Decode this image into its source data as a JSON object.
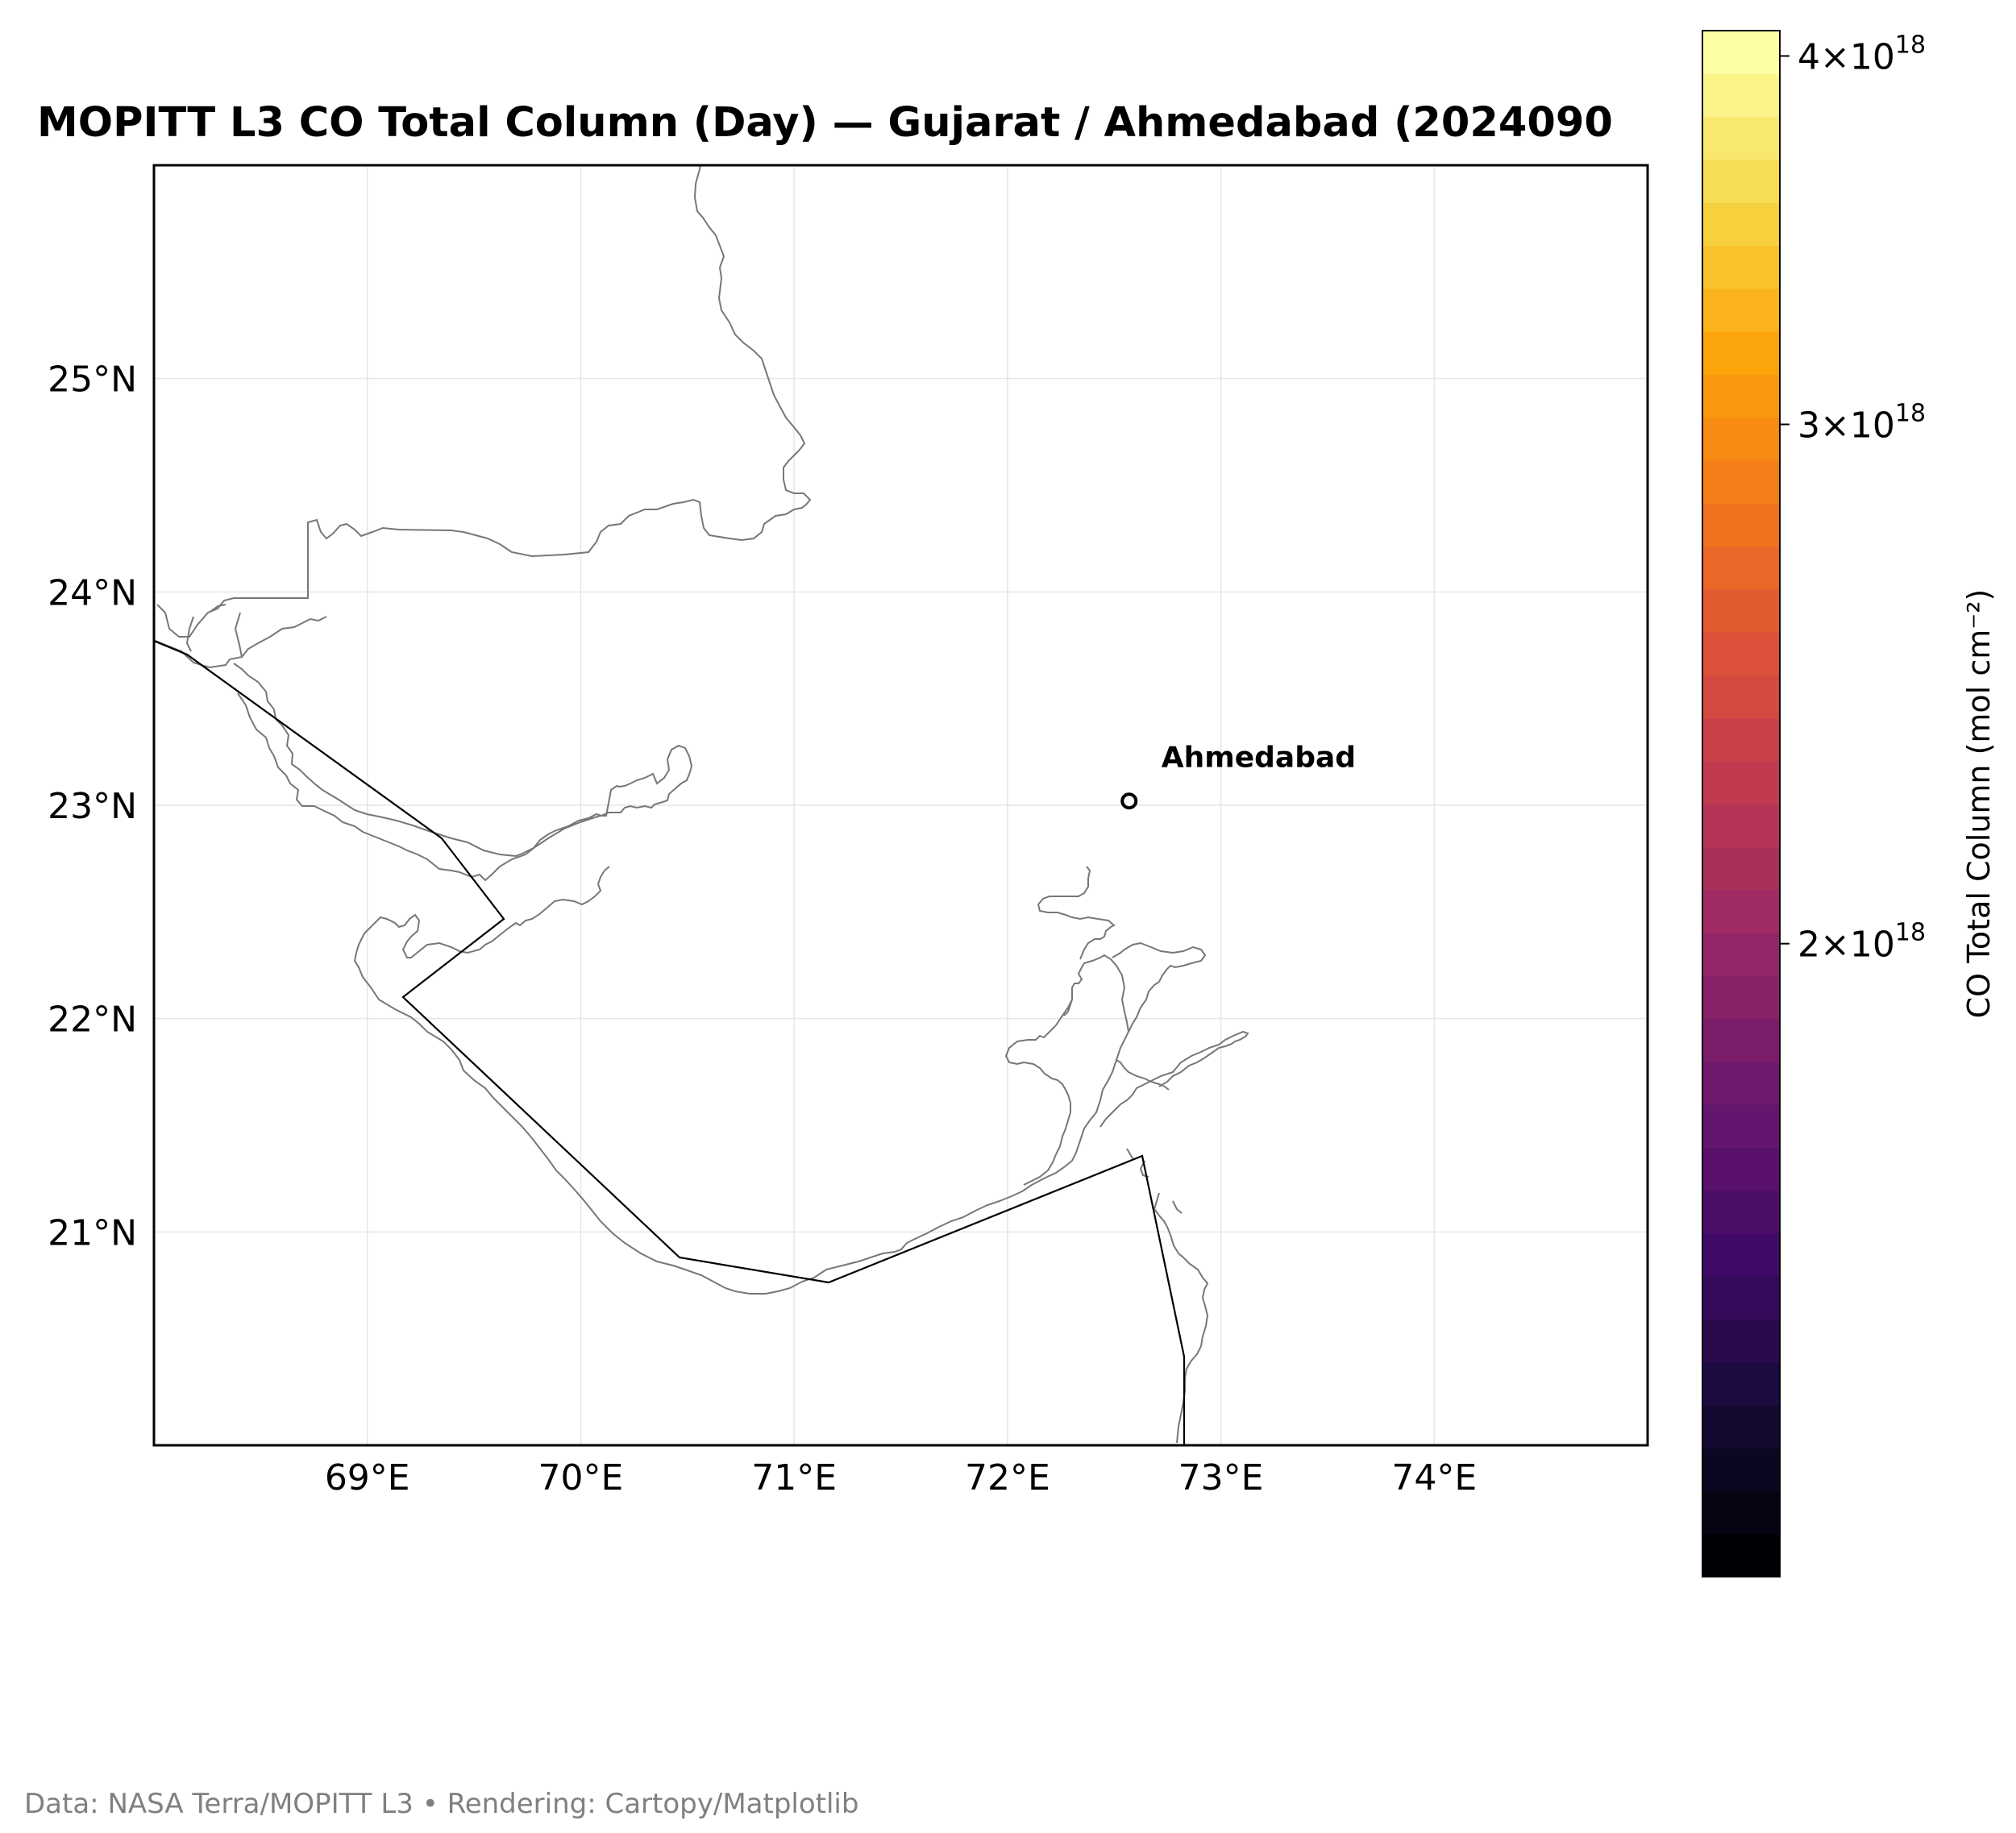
{
  "title": "MOPITT L3 CO Total Column (Day) — Gujarat / Ahmedabad (2024090",
  "footer": "Data: NASA Terra/MOPITT L3 • Rendering: Cartopy/Matplotlib",
  "map": {
    "x_range": [
      68.0,
      75.0
    ],
    "y_range": [
      20.0,
      26.0
    ],
    "x_ticks": [
      69,
      70,
      71,
      72,
      73,
      74
    ],
    "x_tick_labels": [
      "69°E",
      "70°E",
      "71°E",
      "72°E",
      "73°E",
      "74°E"
    ],
    "y_ticks": [
      21,
      22,
      23,
      24,
      25
    ],
    "y_tick_labels": [
      "21°N",
      "22°N",
      "23°N",
      "24°N",
      "25°N"
    ],
    "grid": true,
    "marker": {
      "label": "Ahmedabad",
      "lon": 72.57,
      "lat": 23.02
    }
  },
  "colorbar": {
    "label": "CO Total Column (mol cm⁻²)",
    "colormap": "inferno",
    "scale": "log",
    "ticks": [
      {
        "value": 2e+18,
        "mantissa": "2×10",
        "exponent": "18"
      },
      {
        "value": 3e+18,
        "mantissa": "3×10",
        "exponent": "18"
      },
      {
        "value": 4e+18,
        "mantissa": "4×10",
        "exponent": "18"
      }
    ]
  }
}
